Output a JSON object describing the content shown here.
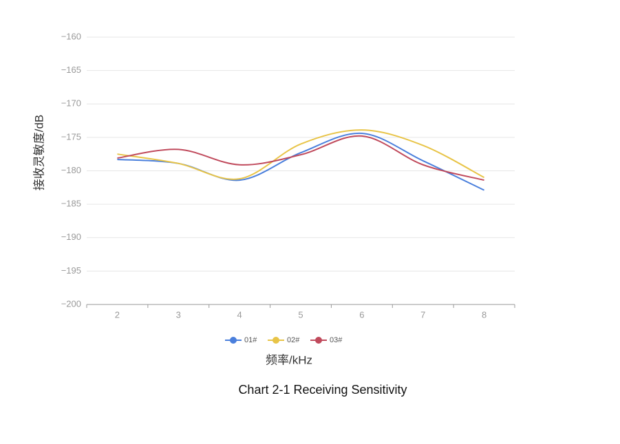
{
  "chart_data": {
    "type": "line",
    "y_label": "接收灵敏度/dB",
    "x_label": "频率/kHz",
    "caption": "Chart 2-1  Receiving Sensitivity",
    "categories": [
      "2",
      "3",
      "4",
      "5",
      "6",
      "7",
      "8"
    ],
    "series": [
      {
        "name": "01#",
        "color": "#4a7fdc",
        "values": [
          -178.3,
          -178.9,
          -181.4,
          -177.3,
          -174.4,
          -178.5,
          -182.9
        ]
      },
      {
        "name": "02#",
        "color": "#e8c447",
        "values": [
          -177.5,
          -178.9,
          -181.2,
          -176.0,
          -173.9,
          -176.2,
          -181.0
        ]
      },
      {
        "name": "03#",
        "color": "#c04a5c",
        "values": [
          -178.1,
          -176.8,
          -179.1,
          -177.6,
          -174.8,
          -179.1,
          -181.4
        ]
      }
    ],
    "ylim": [
      -200,
      -160
    ],
    "yticks": [
      {
        "value": -200,
        "label": "−200"
      },
      {
        "value": -195,
        "label": "−195"
      },
      {
        "value": -190,
        "label": "−190"
      },
      {
        "value": -185,
        "label": "−185"
      },
      {
        "value": -180,
        "label": "−180"
      },
      {
        "value": -175,
        "label": "−175"
      },
      {
        "value": -170,
        "label": "−170"
      },
      {
        "value": -165,
        "label": "−165"
      },
      {
        "value": -160,
        "label": "−160"
      }
    ],
    "grid": true,
    "legend": "bottom"
  }
}
